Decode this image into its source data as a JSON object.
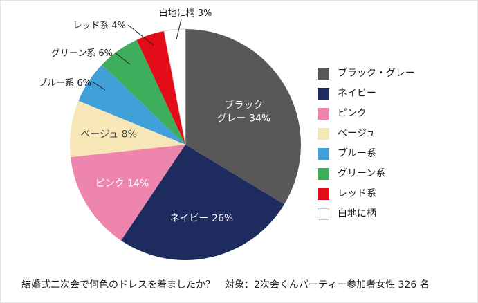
{
  "chart_data": {
    "type": "pie",
    "title": "",
    "caption": "結婚式二次会で何色のドレスを着ましたか？　対象：2次会くんパーティー参加者女性 326 名",
    "unit": "%",
    "legend_position": "right",
    "grid": false,
    "slices": [
      {
        "legend_label": "ブラック・グレー",
        "value": 34,
        "color": "#595757",
        "label_lines": [
          "ブラック",
          "グレー 34%"
        ],
        "label_placement": "inside"
      },
      {
        "legend_label": "ネイビー",
        "value": 26,
        "color": "#1e2b5e",
        "label_lines": [
          "ネイビー 26%"
        ],
        "label_placement": "inside"
      },
      {
        "legend_label": "ピンク",
        "value": 14,
        "color": "#ee85ad",
        "label_lines": [
          "ピンク 14%"
        ],
        "label_placement": "inside"
      },
      {
        "legend_label": "ベージュ",
        "value": 8,
        "color": "#f7e6b6",
        "label_lines": [
          "ベージュ 8%"
        ],
        "label_placement": "inside"
      },
      {
        "legend_label": "ブルー系",
        "value": 6,
        "color": "#41a0d8",
        "label_lines": [
          "ブルー系 6%"
        ],
        "label_placement": "outside"
      },
      {
        "legend_label": "グリーン系",
        "value": 6,
        "color": "#3fae5c",
        "label_lines": [
          "グリーン系 6%"
        ],
        "label_placement": "outside"
      },
      {
        "legend_label": "レッド系",
        "value": 4,
        "color": "#e30b17",
        "label_lines": [
          "レッド系 4%"
        ],
        "label_placement": "outside"
      },
      {
        "legend_label": "白地に柄",
        "value": 3,
        "color": "#ffffff",
        "label_lines": [
          "白地に柄 3%"
        ],
        "label_placement": "outside"
      }
    ]
  }
}
